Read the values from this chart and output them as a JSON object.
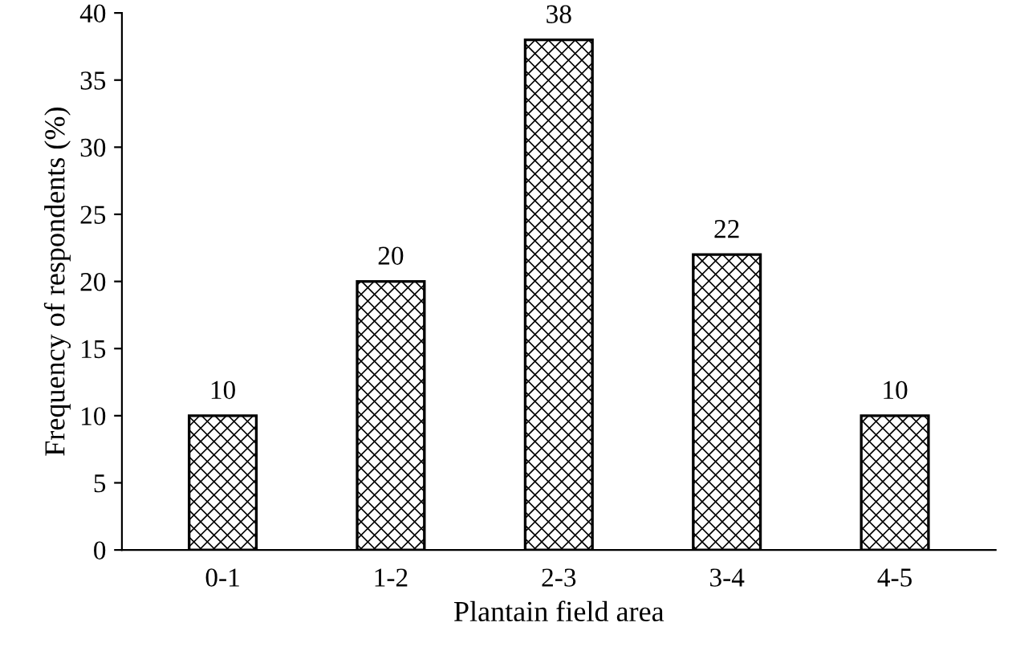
{
  "chart_data": {
    "type": "bar",
    "xlabel": "Plantain field area",
    "ylabel": "Frequency of respondents (%)",
    "categories": [
      "0-1",
      "1-2",
      "2-3",
      "3-4",
      "4-5"
    ],
    "values": [
      10,
      20,
      38,
      22,
      10
    ],
    "color": "#000000",
    "ylim": [
      0,
      40
    ],
    "yticks": [
      0,
      5,
      10,
      15,
      20,
      25,
      30,
      35,
      40
    ],
    "data_labels": true,
    "grid": false,
    "legend": false
  }
}
